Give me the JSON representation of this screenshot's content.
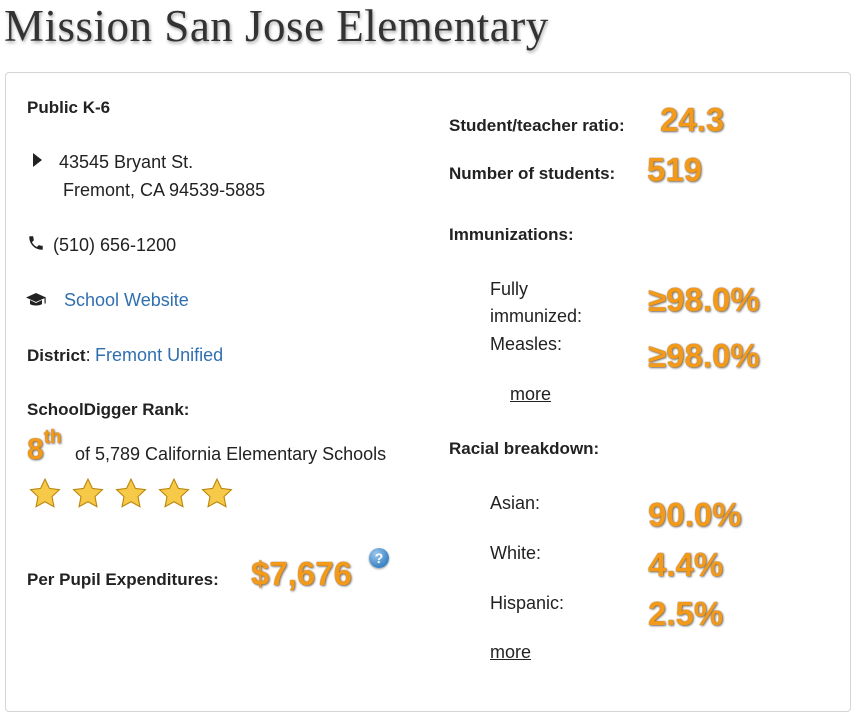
{
  "page": {
    "title": "Mission San Jose Elementary"
  },
  "school": {
    "type": "Public K-6",
    "address_line1": "43545 Bryant St.",
    "address_line2": "Fremont, CA  94539-5885",
    "phone": "(510) 656-1200",
    "website_label": "School Website",
    "district_label": "District",
    "district_sep": ":",
    "district_name": "Fremont Unified",
    "rank_label": "SchoolDigger Rank:",
    "rank_number": "8",
    "rank_suffix": "th",
    "rank_text": "of 5,789 California Elementary Schools",
    "rank_stars": 5,
    "rank_stars_max": 5,
    "expenditure_label": "Per Pupil Expenditures:",
    "expenditure_value": "$7,676",
    "help_glyph": "?"
  },
  "stats": {
    "ratio_label": "Student/teacher ratio:",
    "ratio_value": "24.3",
    "students_label": "Number of students:",
    "students_value": "519",
    "immunizations_label": "Immunizations:",
    "immunizations": [
      {
        "label_line1": "Fully",
        "label_line2": "immunized:",
        "value": "≥98.0%"
      },
      {
        "label": "Measles:",
        "value": "≥98.0%"
      }
    ],
    "immunizations_more": "more",
    "racial_label": "Racial breakdown:",
    "racial": [
      {
        "label": "Asian:",
        "value": "90.0%"
      },
      {
        "label": "White:",
        "value": "4.4%"
      },
      {
        "label": "Hispanic:",
        "value": "2.5%"
      }
    ],
    "racial_more": "more"
  },
  "icons": {
    "address": "caret-right-icon",
    "phone": "phone-icon",
    "website": "graduation-cap-icon",
    "help": "help-icon",
    "star": "star-icon"
  },
  "colors": {
    "accent": "#f39a1a",
    "link": "#2f6fb0",
    "star": "#f7c948"
  }
}
